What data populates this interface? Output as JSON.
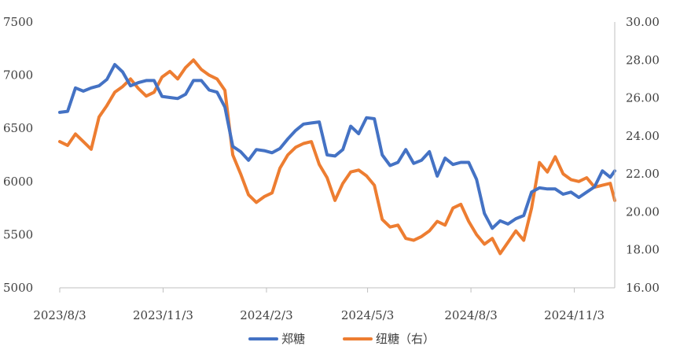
{
  "chart_data": {
    "type": "line",
    "title": "",
    "x_ticks": [
      "2023/8/3",
      "2023/11/3",
      "2024/2/3",
      "2024/5/3",
      "2024/8/3",
      "2024/11/3"
    ],
    "x_range": [
      "2023-08-03",
      "2024-12-09"
    ],
    "y_left": {
      "ticks": [
        5000,
        5500,
        6000,
        6500,
        7000,
        7500
      ],
      "range": [
        5000,
        7500
      ]
    },
    "y_right": {
      "ticks": [
        "16.00",
        "18.00",
        "20.00",
        "22.00",
        "24.00",
        "26.00",
        "28.00",
        "30.00"
      ],
      "range": [
        16,
        30
      ]
    },
    "legend": {
      "position": "bottom"
    },
    "grid": false,
    "series": [
      {
        "name": "郑糖",
        "axis": "left",
        "color": "#4472C4",
        "points": [
          [
            "2023-08-03",
            6650
          ],
          [
            "2023-08-10",
            6660
          ],
          [
            "2023-08-17",
            6880
          ],
          [
            "2023-08-24",
            6850
          ],
          [
            "2023-08-31",
            6880
          ],
          [
            "2023-09-07",
            6900
          ],
          [
            "2023-09-14",
            6960
          ],
          [
            "2023-09-21",
            7100
          ],
          [
            "2023-09-28",
            7030
          ],
          [
            "2023-10-05",
            6900
          ],
          [
            "2023-10-12",
            6930
          ],
          [
            "2023-10-19",
            6950
          ],
          [
            "2023-10-26",
            6950
          ],
          [
            "2023-11-02",
            6800
          ],
          [
            "2023-11-09",
            6790
          ],
          [
            "2023-11-16",
            6780
          ],
          [
            "2023-11-23",
            6820
          ],
          [
            "2023-11-30",
            6950
          ],
          [
            "2023-12-07",
            6950
          ],
          [
            "2023-12-14",
            6860
          ],
          [
            "2023-12-21",
            6840
          ],
          [
            "2023-12-28",
            6700
          ],
          [
            "2024-01-04",
            6330
          ],
          [
            "2024-01-11",
            6280
          ],
          [
            "2024-01-18",
            6200
          ],
          [
            "2024-01-25",
            6300
          ],
          [
            "2024-02-01",
            6290
          ],
          [
            "2024-02-08",
            6270
          ],
          [
            "2024-02-15",
            6310
          ],
          [
            "2024-02-22",
            6400
          ],
          [
            "2024-02-29",
            6480
          ],
          [
            "2024-03-07",
            6540
          ],
          [
            "2024-03-14",
            6550
          ],
          [
            "2024-03-21",
            6560
          ],
          [
            "2024-03-28",
            6250
          ],
          [
            "2024-04-04",
            6240
          ],
          [
            "2024-04-11",
            6300
          ],
          [
            "2024-04-18",
            6520
          ],
          [
            "2024-04-25",
            6450
          ],
          [
            "2024-05-02",
            6600
          ],
          [
            "2024-05-09",
            6590
          ],
          [
            "2024-05-16",
            6250
          ],
          [
            "2024-05-23",
            6150
          ],
          [
            "2024-05-30",
            6180
          ],
          [
            "2024-06-06",
            6300
          ],
          [
            "2024-06-13",
            6170
          ],
          [
            "2024-06-20",
            6200
          ],
          [
            "2024-06-27",
            6280
          ],
          [
            "2024-07-04",
            6050
          ],
          [
            "2024-07-11",
            6220
          ],
          [
            "2024-07-18",
            6160
          ],
          [
            "2024-07-25",
            6180
          ],
          [
            "2024-08-01",
            6180
          ],
          [
            "2024-08-08",
            6020
          ],
          [
            "2024-08-15",
            5700
          ],
          [
            "2024-08-22",
            5560
          ],
          [
            "2024-08-29",
            5630
          ],
          [
            "2024-09-05",
            5600
          ],
          [
            "2024-09-12",
            5650
          ],
          [
            "2024-09-19",
            5680
          ],
          [
            "2024-09-26",
            5900
          ],
          [
            "2024-10-03",
            5940
          ],
          [
            "2024-10-10",
            5930
          ],
          [
            "2024-10-17",
            5930
          ],
          [
            "2024-10-24",
            5880
          ],
          [
            "2024-10-31",
            5900
          ],
          [
            "2024-11-07",
            5850
          ],
          [
            "2024-11-14",
            5900
          ],
          [
            "2024-11-21",
            5950
          ],
          [
            "2024-11-28",
            6100
          ],
          [
            "2024-12-05",
            6040
          ],
          [
            "2024-12-09",
            6100
          ]
        ]
      },
      {
        "name": "纽糖（右）",
        "axis": "right",
        "color": "#ED7D31",
        "points": [
          [
            "2023-08-03",
            23.7
          ],
          [
            "2023-08-10",
            23.5
          ],
          [
            "2023-08-17",
            24.1
          ],
          [
            "2023-08-24",
            23.7
          ],
          [
            "2023-08-31",
            23.3
          ],
          [
            "2023-09-07",
            25.0
          ],
          [
            "2023-09-14",
            25.6
          ],
          [
            "2023-09-21",
            26.3
          ],
          [
            "2023-09-28",
            26.6
          ],
          [
            "2023-10-05",
            27.0
          ],
          [
            "2023-10-12",
            26.5
          ],
          [
            "2023-10-19",
            26.1
          ],
          [
            "2023-10-26",
            26.3
          ],
          [
            "2023-11-02",
            27.1
          ],
          [
            "2023-11-09",
            27.4
          ],
          [
            "2023-11-16",
            27.0
          ],
          [
            "2023-11-23",
            27.6
          ],
          [
            "2023-11-30",
            28.0
          ],
          [
            "2023-12-07",
            27.5
          ],
          [
            "2023-12-14",
            27.2
          ],
          [
            "2023-12-21",
            27.0
          ],
          [
            "2023-12-28",
            26.4
          ],
          [
            "2024-01-04",
            23.0
          ],
          [
            "2024-01-11",
            22.0
          ],
          [
            "2024-01-18",
            20.9
          ],
          [
            "2024-01-25",
            20.5
          ],
          [
            "2024-02-01",
            20.8
          ],
          [
            "2024-02-08",
            21.0
          ],
          [
            "2024-02-15",
            22.3
          ],
          [
            "2024-02-22",
            23.0
          ],
          [
            "2024-02-29",
            23.4
          ],
          [
            "2024-03-07",
            23.6
          ],
          [
            "2024-03-14",
            23.7
          ],
          [
            "2024-03-21",
            22.5
          ],
          [
            "2024-03-28",
            21.8
          ],
          [
            "2024-04-04",
            20.6
          ],
          [
            "2024-04-11",
            21.5
          ],
          [
            "2024-04-18",
            22.1
          ],
          [
            "2024-04-25",
            22.2
          ],
          [
            "2024-05-02",
            21.9
          ],
          [
            "2024-05-09",
            21.4
          ],
          [
            "2024-05-16",
            19.6
          ],
          [
            "2024-05-23",
            19.2
          ],
          [
            "2024-05-30",
            19.3
          ],
          [
            "2024-06-06",
            18.6
          ],
          [
            "2024-06-13",
            18.5
          ],
          [
            "2024-06-20",
            18.7
          ],
          [
            "2024-06-27",
            19.0
          ],
          [
            "2024-07-04",
            19.5
          ],
          [
            "2024-07-11",
            19.3
          ],
          [
            "2024-07-18",
            20.2
          ],
          [
            "2024-07-25",
            20.4
          ],
          [
            "2024-08-01",
            19.5
          ],
          [
            "2024-08-08",
            18.8
          ],
          [
            "2024-08-15",
            18.3
          ],
          [
            "2024-08-22",
            18.6
          ],
          [
            "2024-08-29",
            17.8
          ],
          [
            "2024-09-05",
            18.4
          ],
          [
            "2024-09-12",
            19.0
          ],
          [
            "2024-09-19",
            18.5
          ],
          [
            "2024-09-26",
            20.2
          ],
          [
            "2024-10-03",
            22.6
          ],
          [
            "2024-10-10",
            22.1
          ],
          [
            "2024-10-17",
            22.9
          ],
          [
            "2024-10-24",
            22.0
          ],
          [
            "2024-10-31",
            21.7
          ],
          [
            "2024-11-07",
            21.6
          ],
          [
            "2024-11-14",
            21.8
          ],
          [
            "2024-11-21",
            21.3
          ],
          [
            "2024-11-28",
            21.4
          ],
          [
            "2024-12-05",
            21.5
          ],
          [
            "2024-12-09",
            20.6
          ]
        ]
      }
    ]
  }
}
